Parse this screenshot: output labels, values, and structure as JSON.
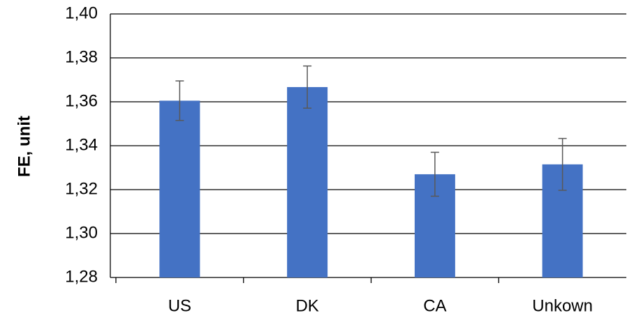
{
  "chart_data": {
    "type": "bar",
    "y_label": "FE, unit",
    "categories": [
      "US",
      "DK",
      "CA",
      "Unkown"
    ],
    "values": [
      1.3605,
      1.3667,
      1.327,
      1.3315
    ],
    "errors": [
      0.009,
      0.0096,
      0.01,
      0.0118
    ],
    "color": "#4472c4",
    "error_color": "#595959",
    "ylim": [
      1.28,
      1.4
    ],
    "yticks": [
      {
        "value": 1.28,
        "label": "1,28"
      },
      {
        "value": 1.3,
        "label": "1,30"
      },
      {
        "value": 1.32,
        "label": "1,32"
      },
      {
        "value": 1.34,
        "label": "1,34"
      },
      {
        "value": 1.36,
        "label": "1,36"
      },
      {
        "value": 1.38,
        "label": "1,38"
      },
      {
        "value": 1.4,
        "label": "1,40"
      }
    ],
    "grid": true
  }
}
